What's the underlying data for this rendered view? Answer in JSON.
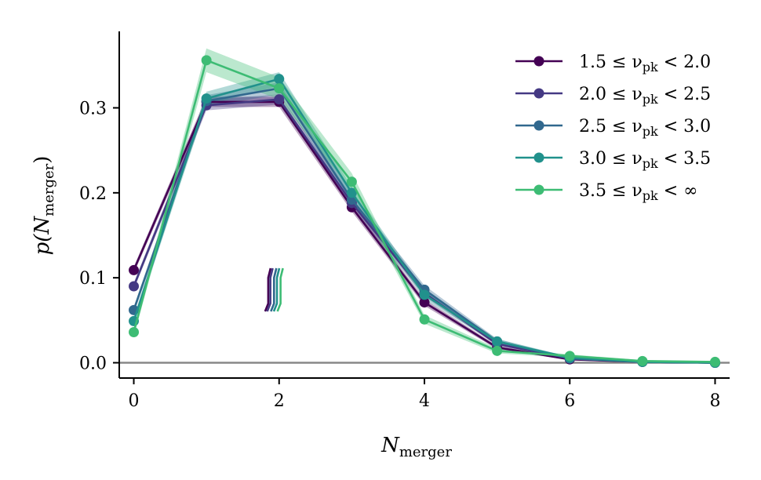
{
  "chart_data": {
    "type": "line",
    "title": "",
    "xlabel": "N",
    "xlabel_sub": "merger",
    "ylabel_prefix": "p(N",
    "ylabel_sub": "merger",
    "ylabel_suffix": ")",
    "xlim": [
      -0.2,
      8.2
    ],
    "ylim": [
      -0.018,
      0.39
    ],
    "xticks": [
      0,
      2,
      4,
      6,
      8
    ],
    "yticks": [
      0.0,
      0.1,
      0.2,
      0.3
    ],
    "ytick_labels": [
      "0.0",
      "0.1",
      "0.2",
      "0.3"
    ],
    "grid": false,
    "legend_position": "top-right",
    "reference_line_y": 0.0,
    "reference_line_color": "#888888",
    "x": [
      0,
      1,
      2,
      3,
      4,
      5,
      6,
      7,
      8
    ],
    "series": [
      {
        "name": "1.5 ≤ ν_pk < 2.0",
        "legend_text": "1.5 ≤ ν",
        "legend_sub": "pk",
        "legend_tail": " < 2.0",
        "color": "#440154",
        "values": [
          0.109,
          0.307,
          0.307,
          0.183,
          0.071,
          0.018,
          0.004,
          0.001,
          0.0
        ],
        "band": [
          0.004,
          0.006,
          0.006,
          0.005,
          0.004,
          0.002,
          0.001,
          0.001,
          0.0
        ],
        "marker_x": 1.85
      },
      {
        "name": "2.0 ≤ ν_pk < 2.5",
        "legend_text": "2.0 ≤ ν",
        "legend_sub": "pk",
        "legend_tail": " < 2.5",
        "color": "#443983",
        "values": [
          0.09,
          0.303,
          0.31,
          0.188,
          0.082,
          0.022,
          0.005,
          0.001,
          0.0
        ],
        "band": [
          0.004,
          0.006,
          0.006,
          0.005,
          0.004,
          0.002,
          0.001,
          0.001,
          0.0
        ],
        "marker_x": 1.88
      },
      {
        "name": "2.5 ≤ ν_pk < 3.0",
        "legend_text": "2.5 ≤ ν",
        "legend_sub": "pk",
        "legend_tail": " < 3.0",
        "color": "#31688e",
        "values": [
          0.062,
          0.308,
          0.323,
          0.192,
          0.086,
          0.025,
          0.005,
          0.001,
          0.0
        ],
        "band": [
          0.004,
          0.007,
          0.007,
          0.006,
          0.005,
          0.003,
          0.001,
          0.001,
          0.0
        ],
        "marker_x": 1.93
      },
      {
        "name": "3.0 ≤ ν_pk < 3.5",
        "legend_text": "3.0 ≤ ν",
        "legend_sub": "pk",
        "legend_tail": " < 3.5",
        "color": "#21918c",
        "values": [
          0.049,
          0.311,
          0.334,
          0.2,
          0.08,
          0.025,
          0.006,
          0.001,
          0.0
        ],
        "band": [
          0.005,
          0.008,
          0.008,
          0.007,
          0.005,
          0.003,
          0.001,
          0.001,
          0.0
        ],
        "marker_x": 1.97
      },
      {
        "name": "3.5 ≤ ν_pk < ∞",
        "legend_text": "3.5 ≤ ν",
        "legend_sub": "pk",
        "legend_tail": " < ∞",
        "color": "#3dbc74",
        "values": [
          0.036,
          0.356,
          0.323,
          0.213,
          0.051,
          0.014,
          0.008,
          0.002,
          0.001
        ],
        "band": [
          0.005,
          0.014,
          0.013,
          0.01,
          0.005,
          0.003,
          0.002,
          0.001,
          0.001
        ],
        "marker_x": 2.02
      }
    ]
  }
}
